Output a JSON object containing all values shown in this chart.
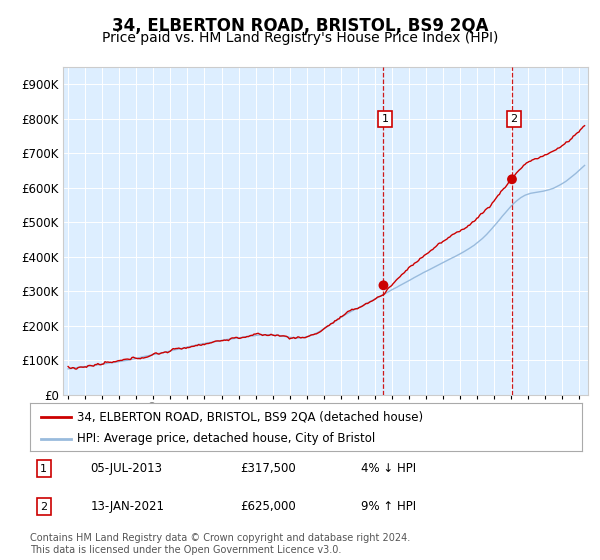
{
  "title": "34, ELBERTON ROAD, BRISTOL, BS9 2QA",
  "subtitle": "Price paid vs. HM Land Registry's House Price Index (HPI)",
  "ylim": [
    0,
    950000
  ],
  "yticks": [
    0,
    100000,
    200000,
    300000,
    400000,
    500000,
    600000,
    700000,
    800000,
    900000
  ],
  "xlim_start": 1994.7,
  "xlim_end": 2025.5,
  "marker1_x": 2013.5,
  "marker1_y": 317500,
  "marker2_x": 2021.04,
  "marker2_y": 625000,
  "line1_color": "#cc0000",
  "line2_color": "#99bbdd",
  "plot_bg": "#ddeeff",
  "legend_line1": "34, ELBERTON ROAD, BRISTOL, BS9 2QA (detached house)",
  "legend_line2": "HPI: Average price, detached house, City of Bristol",
  "ann1_date": "05-JUL-2013",
  "ann1_price": "£317,500",
  "ann1_hpi": "4% ↓ HPI",
  "ann2_date": "13-JAN-2021",
  "ann2_price": "£625,000",
  "ann2_hpi": "9% ↑ HPI",
  "footer": "Contains HM Land Registry data © Crown copyright and database right 2024.\nThis data is licensed under the Open Government Licence v3.0.",
  "title_fontsize": 12,
  "subtitle_fontsize": 10
}
